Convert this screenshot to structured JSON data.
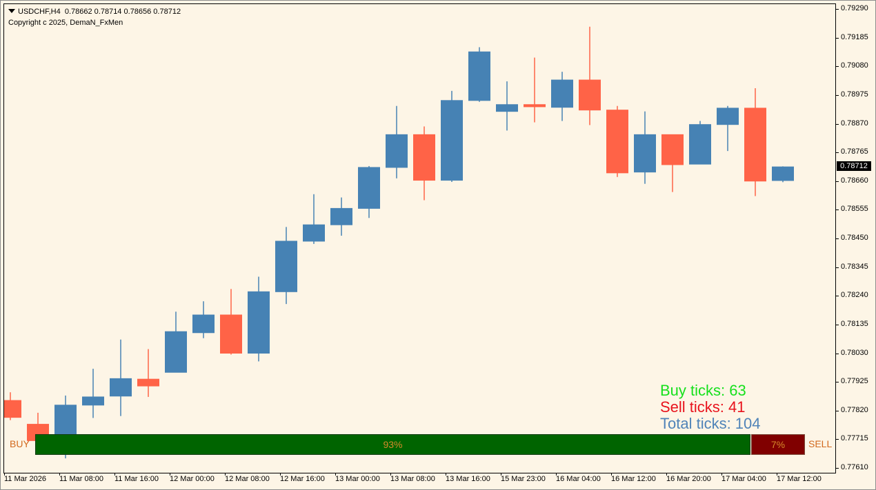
{
  "header": {
    "symbol_line": "USDCHF,H4  0.78662 0.78714 0.78656 0.78712",
    "copyright": "Copyright c 2025, DemaN_FxMen"
  },
  "stats": {
    "buy": "Buy ticks: 63",
    "sell": "Sell ticks: 41",
    "total": "Total ticks: 104"
  },
  "ratio_bar": {
    "buy_label": "BUY",
    "sell_label": "SELL",
    "buy_pct_text": "93%",
    "sell_pct_text": "7%",
    "buy_fraction": 0.93,
    "sell_fraction": 0.07
  },
  "colors": {
    "background": "#fdf5e6",
    "bull": "#4682b4",
    "bear": "#ff6347",
    "buy_bar": "#006400",
    "sell_bar": "#800000"
  },
  "current_price": "0.78712",
  "chart_data": {
    "type": "candlestick",
    "y_range": [
      0.7761,
      0.7929
    ],
    "y_ticks": [
      "0.79290",
      "0.79185",
      "0.79080",
      "0.78975",
      "0.78870",
      "0.78765",
      "0.78660",
      "0.78555",
      "0.78450",
      "0.78345",
      "0.78240",
      "0.78135",
      "0.78030",
      "0.77925",
      "0.77820",
      "0.77715",
      "0.77610"
    ],
    "x_labels": [
      "11 Mar 2026",
      "11 Mar 08:00",
      "11 Mar 16:00",
      "12 Mar 00:00",
      "12 Mar 08:00",
      "12 Mar 16:00",
      "13 Mar 00:00",
      "13 Mar 08:00",
      "13 Mar 16:00",
      "15 Mar 23:00",
      "16 Mar 04:00",
      "16 Mar 12:00",
      "16 Mar 20:00",
      "17 Mar 04:00",
      "17 Mar 12:00"
    ],
    "candles": [
      {
        "o": 0.77857,
        "h": 0.77887,
        "l": 0.77785,
        "c": 0.77795
      },
      {
        "o": 0.7777,
        "h": 0.77812,
        "l": 0.7768,
        "c": 0.7771
      },
      {
        "o": 0.7771,
        "h": 0.77875,
        "l": 0.77645,
        "c": 0.7784
      },
      {
        "o": 0.7784,
        "h": 0.77973,
        "l": 0.77793,
        "c": 0.7787
      },
      {
        "o": 0.77873,
        "h": 0.7808,
        "l": 0.778,
        "c": 0.77937
      },
      {
        "o": 0.77935,
        "h": 0.78045,
        "l": 0.7787,
        "c": 0.7791
      },
      {
        "o": 0.7796,
        "h": 0.78182,
        "l": 0.7796,
        "c": 0.78109
      },
      {
        "o": 0.78105,
        "h": 0.7822,
        "l": 0.78085,
        "c": 0.7817
      },
      {
        "o": 0.7817,
        "h": 0.78265,
        "l": 0.78025,
        "c": 0.7803
      },
      {
        "o": 0.7803,
        "h": 0.7831,
        "l": 0.78,
        "c": 0.78255
      },
      {
        "o": 0.78255,
        "h": 0.78492,
        "l": 0.7821,
        "c": 0.7844
      },
      {
        "o": 0.7844,
        "h": 0.78612,
        "l": 0.7843,
        "c": 0.785
      },
      {
        "o": 0.785,
        "h": 0.786,
        "l": 0.7846,
        "c": 0.7856
      },
      {
        "o": 0.7856,
        "h": 0.78715,
        "l": 0.78525,
        "c": 0.7871
      },
      {
        "o": 0.7871,
        "h": 0.78935,
        "l": 0.7867,
        "c": 0.7883
      },
      {
        "o": 0.7883,
        "h": 0.7886,
        "l": 0.7859,
        "c": 0.78663
      },
      {
        "o": 0.78663,
        "h": 0.7899,
        "l": 0.78657,
        "c": 0.78955
      },
      {
        "o": 0.78955,
        "h": 0.7915,
        "l": 0.7895,
        "c": 0.79133
      },
      {
        "o": 0.78915,
        "h": 0.79025,
        "l": 0.78845,
        "c": 0.7894
      },
      {
        "o": 0.7894,
        "h": 0.79112,
        "l": 0.78875,
        "c": 0.78932
      },
      {
        "o": 0.7893,
        "h": 0.7906,
        "l": 0.7888,
        "c": 0.7903
      },
      {
        "o": 0.7903,
        "h": 0.79225,
        "l": 0.78865,
        "c": 0.7892
      },
      {
        "o": 0.7892,
        "h": 0.78935,
        "l": 0.78675,
        "c": 0.7869
      },
      {
        "o": 0.78693,
        "h": 0.78915,
        "l": 0.7865,
        "c": 0.7883
      },
      {
        "o": 0.7883,
        "h": 0.7883,
        "l": 0.7862,
        "c": 0.7872
      },
      {
        "o": 0.78722,
        "h": 0.7888,
        "l": 0.78722,
        "c": 0.78867
      },
      {
        "o": 0.78867,
        "h": 0.78935,
        "l": 0.7877,
        "c": 0.78927
      },
      {
        "o": 0.78927,
        "h": 0.79,
        "l": 0.78605,
        "c": 0.7866
      },
      {
        "o": 0.78662,
        "h": 0.78714,
        "l": 0.78656,
        "c": 0.78712
      }
    ]
  }
}
